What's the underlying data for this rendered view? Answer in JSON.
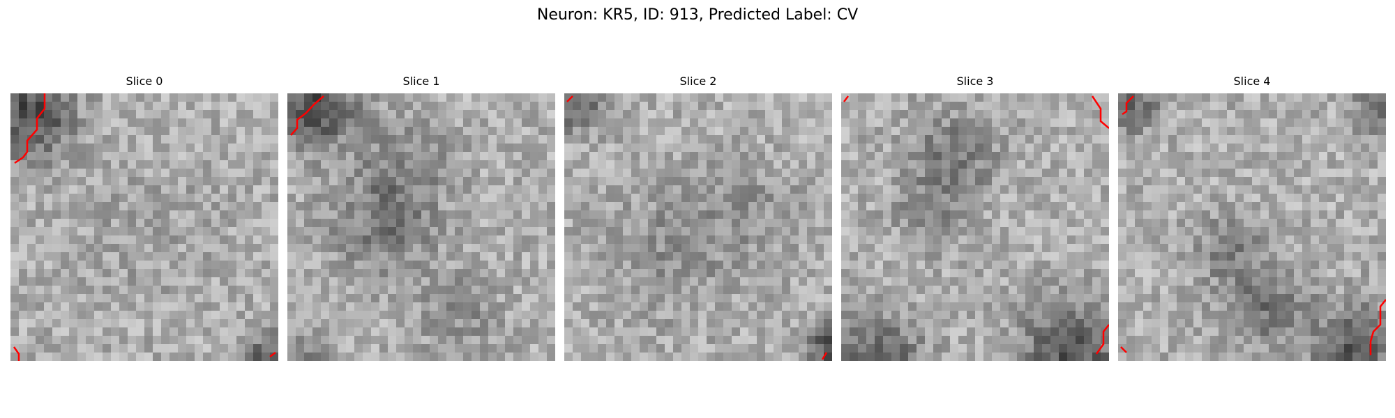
{
  "figure": {
    "title": "Neuron: KR5, ID: 913, Predicted Label: CV"
  },
  "slices": [
    {
      "label": "Slice 0"
    },
    {
      "label": "Slice 1"
    },
    {
      "label": "Slice 2"
    },
    {
      "label": "Slice 3"
    },
    {
      "label": "Slice 4"
    }
  ],
  "colors": {
    "background": "#ffffff",
    "outline": "#ff0000",
    "colormap": "gray"
  }
}
